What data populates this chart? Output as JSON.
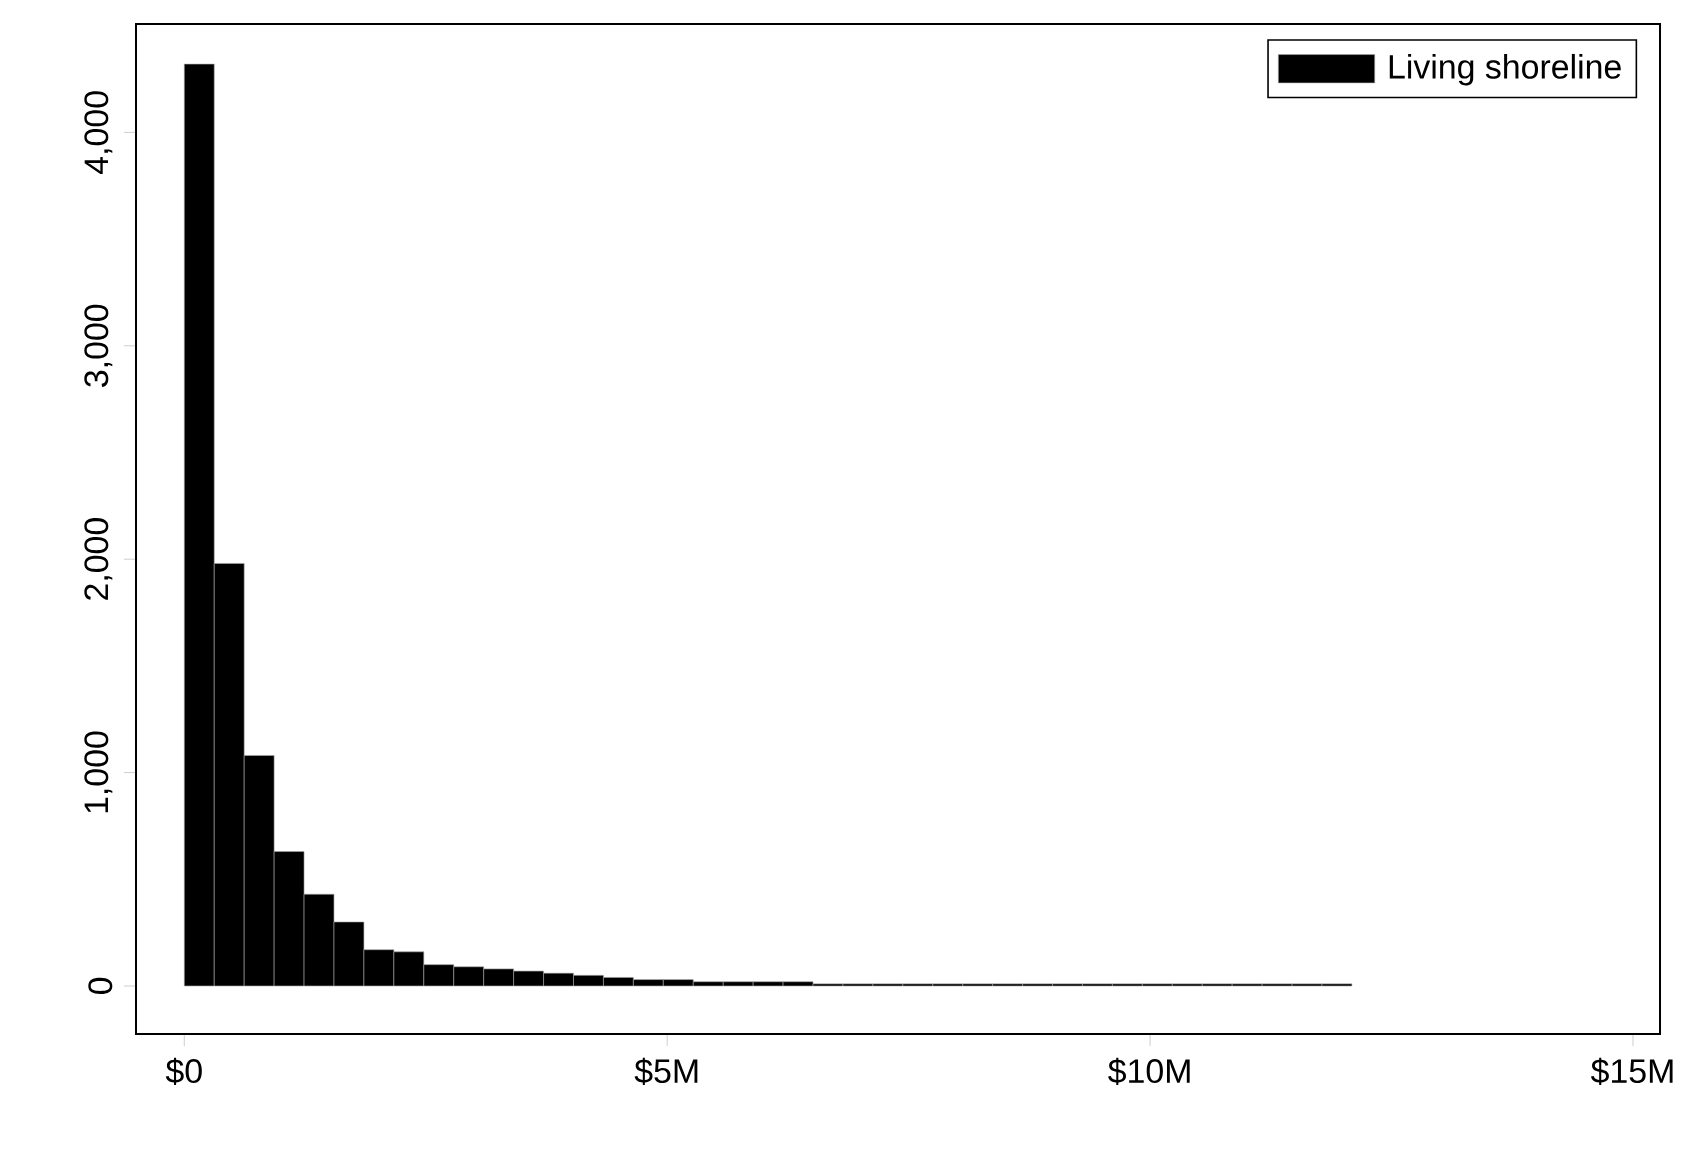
{
  "chart_data": {
    "type": "histogram",
    "bins": [
      0,
      310000,
      620000,
      930000,
      1240000,
      1550000,
      1860000,
      2170000,
      2480000,
      2790000,
      3100000,
      3410000,
      3720000,
      4030000,
      4340000,
      4650000,
      4960000,
      5270000,
      5580000,
      5890000,
      6200000,
      6510000,
      6820000,
      7130000,
      7440000,
      7750000,
      8060000,
      8370000,
      8680000,
      8990000,
      9300000,
      9610000,
      9920000,
      10230000,
      10540000,
      10850000,
      11160000,
      11470000,
      11780000,
      12090000
    ],
    "series": [
      {
        "name": "Living shoreline",
        "color": "#000000",
        "values": [
          4320,
          1980,
          1080,
          630,
          430,
          300,
          170,
          160,
          100,
          90,
          80,
          70,
          60,
          50,
          40,
          30,
          30,
          20,
          20,
          20,
          20,
          10,
          10,
          10,
          10,
          10,
          10,
          10,
          10,
          10,
          10,
          10,
          10,
          10,
          10,
          10,
          10,
          10,
          10
        ]
      }
    ],
    "xlim": [
      -500000,
      15280000
    ],
    "xticks": [
      {
        "value": 0,
        "label": "$0"
      },
      {
        "value": 5000000,
        "label": "$5M"
      },
      {
        "value": 10000000,
        "label": "$10M"
      },
      {
        "value": 15000000,
        "label": "$15M"
      }
    ],
    "ylim": [
      -225,
      4508
    ],
    "yticks": [
      0,
      {
        "value": 1000,
        "label": "1,000"
      },
      {
        "value": 2000,
        "label": "2,000"
      },
      {
        "value": 3000,
        "label": "3,000"
      },
      {
        "value": 4000,
        "label": "4,000"
      }
    ],
    "legend": "top right"
  }
}
